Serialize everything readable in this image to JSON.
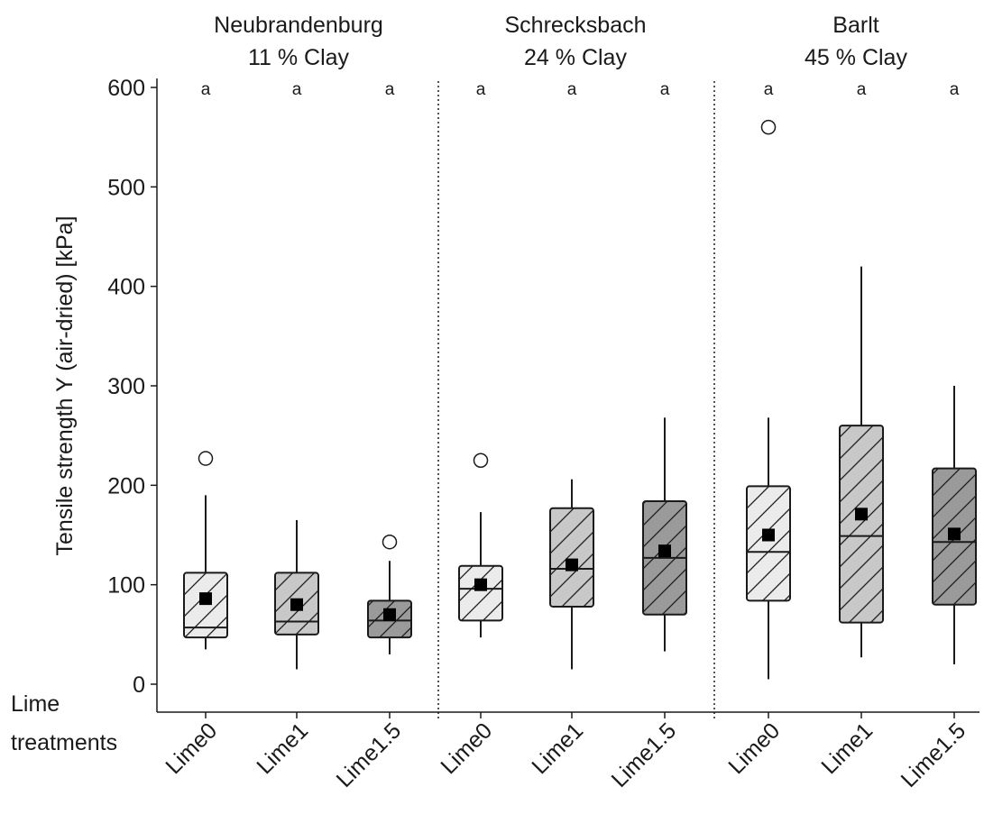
{
  "chart_data": {
    "type": "box",
    "ylabel": "Tensile strength Y (air-dried) [kPa]",
    "corner_label": [
      "Lime",
      "treatments"
    ],
    "ylim": [
      0,
      600
    ],
    "yticks": [
      0,
      100,
      200,
      300,
      400,
      500,
      600
    ],
    "categories": [
      "Lime0",
      "Lime1",
      "Lime1.5"
    ],
    "grid": false,
    "fill_colors": {
      "Lime0": "#ebebeb",
      "Lime1": "#c8c8c8",
      "Lime1.5": "#9a9a9a"
    },
    "panels": [
      {
        "site": "Neubrandenburg",
        "clay": "11 % Clay",
        "boxes": [
          {
            "treatment": "Lime0",
            "letter": "a",
            "whisker_low": 35,
            "q1": 47,
            "median": 57,
            "q3": 112,
            "whisker_high": 190,
            "mean": 86,
            "outliers": [
              227
            ]
          },
          {
            "treatment": "Lime1",
            "letter": "a",
            "whisker_low": 15,
            "q1": 50,
            "median": 63,
            "q3": 112,
            "whisker_high": 165,
            "mean": 80,
            "outliers": []
          },
          {
            "treatment": "Lime1.5",
            "letter": "a",
            "whisker_low": 30,
            "q1": 47,
            "median": 64,
            "q3": 84,
            "whisker_high": 124,
            "mean": 70,
            "outliers": [
              143
            ]
          }
        ]
      },
      {
        "site": "Schrecksbach",
        "clay": "24 % Clay",
        "boxes": [
          {
            "treatment": "Lime0",
            "letter": "a",
            "whisker_low": 47,
            "q1": 64,
            "median": 96,
            "q3": 119,
            "whisker_high": 173,
            "mean": 100,
            "outliers": [
              225
            ]
          },
          {
            "treatment": "Lime1",
            "letter": "a",
            "whisker_low": 15,
            "q1": 78,
            "median": 116,
            "q3": 177,
            "whisker_high": 206,
            "mean": 120,
            "outliers": []
          },
          {
            "treatment": "Lime1.5",
            "letter": "a",
            "whisker_low": 33,
            "q1": 70,
            "median": 127,
            "q3": 184,
            "whisker_high": 268,
            "mean": 134,
            "outliers": []
          }
        ]
      },
      {
        "site": "Barlt",
        "clay": "45 % Clay",
        "boxes": [
          {
            "treatment": "Lime0",
            "letter": "a",
            "whisker_low": 5,
            "q1": 84,
            "median": 133,
            "q3": 199,
            "whisker_high": 268,
            "mean": 150,
            "outliers": [
              560
            ]
          },
          {
            "treatment": "Lime1",
            "letter": "a",
            "whisker_low": 27,
            "q1": 62,
            "median": 149,
            "q3": 260,
            "whisker_high": 420,
            "mean": 171,
            "outliers": []
          },
          {
            "treatment": "Lime1.5",
            "letter": "a",
            "whisker_low": 20,
            "q1": 80,
            "median": 143,
            "q3": 217,
            "whisker_high": 300,
            "mean": 151,
            "outliers": []
          }
        ]
      }
    ]
  }
}
